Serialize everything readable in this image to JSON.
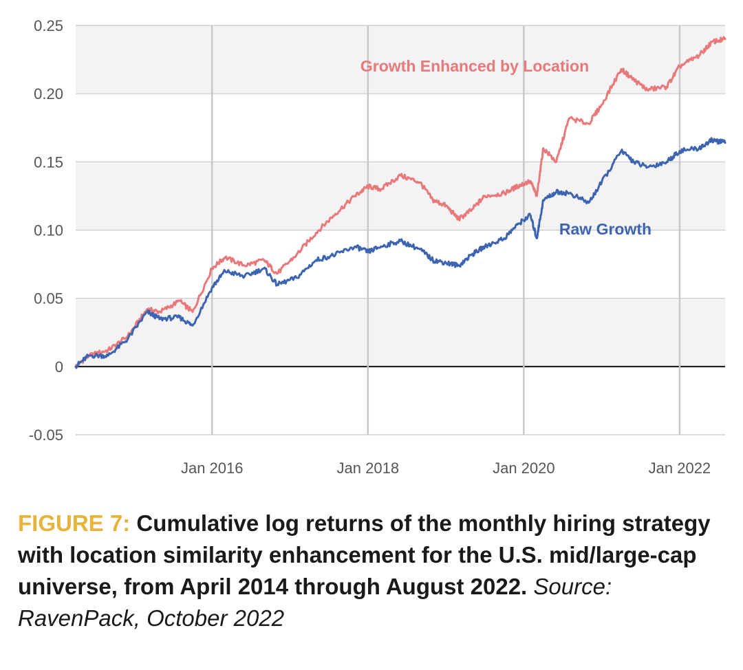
{
  "chart_data": {
    "type": "line",
    "x_axis": {
      "ticks": [
        "Jan 2016",
        "Jan 2018",
        "Jan 2020",
        "Jan 2022"
      ],
      "range": [
        "2014-04",
        "2022-08"
      ]
    },
    "y_axis": {
      "ticks": [
        "0.25",
        "0.20",
        "0.15",
        "0.10",
        "0.05",
        "0",
        "-0.05"
      ],
      "range": [
        -0.05,
        0.25
      ]
    },
    "grid": "vertical lines at year ticks, alternating horizontal bands",
    "series": [
      {
        "name": "Growth Enhanced by Location",
        "color": "#e8787a",
        "points": [
          [
            "2014-04",
            0.0
          ],
          [
            "2014-06",
            0.008
          ],
          [
            "2014-09",
            0.012
          ],
          [
            "2014-12",
            0.022
          ],
          [
            "2015-03",
            0.042
          ],
          [
            "2015-05",
            0.04
          ],
          [
            "2015-08",
            0.048
          ],
          [
            "2015-10",
            0.04
          ],
          [
            "2016-01",
            0.072
          ],
          [
            "2016-03",
            0.08
          ],
          [
            "2016-06",
            0.074
          ],
          [
            "2016-09",
            0.078
          ],
          [
            "2016-11",
            0.068
          ],
          [
            "2017-02",
            0.082
          ],
          [
            "2017-05",
            0.098
          ],
          [
            "2017-08",
            0.112
          ],
          [
            "2017-11",
            0.125
          ],
          [
            "2018-01",
            0.132
          ],
          [
            "2018-03",
            0.13
          ],
          [
            "2018-06",
            0.14
          ],
          [
            "2018-09",
            0.135
          ],
          [
            "2018-11",
            0.122
          ],
          [
            "2019-01",
            0.118
          ],
          [
            "2019-03",
            0.108
          ],
          [
            "2019-05",
            0.115
          ],
          [
            "2019-07",
            0.125
          ],
          [
            "2019-10",
            0.127
          ],
          [
            "2019-12",
            0.132
          ],
          [
            "2020-02",
            0.136
          ],
          [
            "2020-03",
            0.125
          ],
          [
            "2020-04",
            0.16
          ],
          [
            "2020-06",
            0.15
          ],
          [
            "2020-08",
            0.182
          ],
          [
            "2020-11",
            0.178
          ],
          [
            "2021-01",
            0.192
          ],
          [
            "2021-04",
            0.218
          ],
          [
            "2021-06",
            0.21
          ],
          [
            "2021-08",
            0.203
          ],
          [
            "2021-11",
            0.205
          ],
          [
            "2022-01",
            0.22
          ],
          [
            "2022-04",
            0.228
          ],
          [
            "2022-06",
            0.238
          ],
          [
            "2022-08",
            0.24
          ]
        ]
      },
      {
        "name": "Raw Growth",
        "color": "#3c64b0",
        "points": [
          [
            "2014-04",
            0.0
          ],
          [
            "2014-06",
            0.008
          ],
          [
            "2014-09",
            0.008
          ],
          [
            "2014-12",
            0.02
          ],
          [
            "2015-03",
            0.04
          ],
          [
            "2015-05",
            0.035
          ],
          [
            "2015-08",
            0.036
          ],
          [
            "2015-10",
            0.03
          ],
          [
            "2016-01",
            0.058
          ],
          [
            "2016-03",
            0.07
          ],
          [
            "2016-06",
            0.066
          ],
          [
            "2016-09",
            0.072
          ],
          [
            "2016-11",
            0.06
          ],
          [
            "2017-02",
            0.065
          ],
          [
            "2017-05",
            0.078
          ],
          [
            "2017-08",
            0.082
          ],
          [
            "2017-11",
            0.088
          ],
          [
            "2018-01",
            0.084
          ],
          [
            "2018-03",
            0.088
          ],
          [
            "2018-06",
            0.092
          ],
          [
            "2018-09",
            0.086
          ],
          [
            "2018-11",
            0.078
          ],
          [
            "2019-01",
            0.076
          ],
          [
            "2019-03",
            0.074
          ],
          [
            "2019-05",
            0.082
          ],
          [
            "2019-07",
            0.088
          ],
          [
            "2019-10",
            0.094
          ],
          [
            "2019-12",
            0.104
          ],
          [
            "2020-02",
            0.111
          ],
          [
            "2020-03",
            0.094
          ],
          [
            "2020-04",
            0.122
          ],
          [
            "2020-06",
            0.128
          ],
          [
            "2020-08",
            0.127
          ],
          [
            "2020-11",
            0.12
          ],
          [
            "2021-01",
            0.135
          ],
          [
            "2021-04",
            0.158
          ],
          [
            "2021-06",
            0.15
          ],
          [
            "2021-08",
            0.146
          ],
          [
            "2021-11",
            0.15
          ],
          [
            "2022-01",
            0.158
          ],
          [
            "2022-04",
            0.16
          ],
          [
            "2022-06",
            0.166
          ],
          [
            "2022-08",
            0.164
          ]
        ]
      }
    ]
  },
  "caption": {
    "label": "FIGURE 7:",
    "title": "Cumulative log returns of the monthly hiring strategy with location similarity enhancement for the U.S. mid/large-cap universe, from April 2014 through August 2022.",
    "source": "Source: RavenPack, October 2022"
  }
}
